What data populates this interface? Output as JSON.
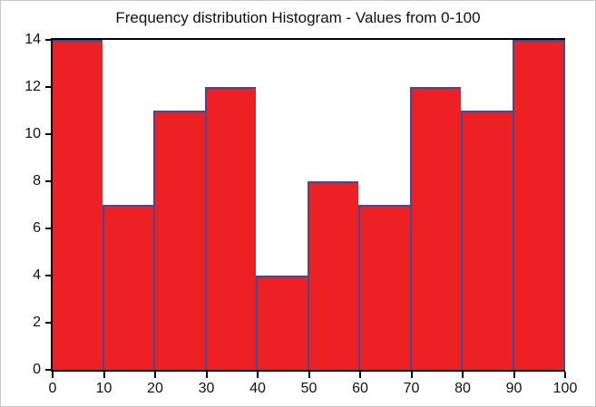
{
  "chart_data": {
    "type": "bar",
    "subtype": "histogram",
    "title": "Frequency distribution Histogram - Values from 0-100",
    "categories": [
      "0-10",
      "10-20",
      "20-30",
      "30-40",
      "40-50",
      "50-60",
      "60-70",
      "70-80",
      "80-90",
      "90-100"
    ],
    "bin_edges": [
      0,
      10,
      20,
      30,
      40,
      50,
      60,
      70,
      80,
      90,
      100
    ],
    "values": [
      14,
      7,
      11,
      12,
      4,
      8,
      7,
      12,
      11,
      14
    ],
    "xlabel": "",
    "ylabel": "",
    "x_ticks": [
      0,
      10,
      20,
      30,
      40,
      50,
      60,
      70,
      80,
      90,
      100
    ],
    "y_ticks": [
      0,
      2,
      4,
      6,
      8,
      10,
      12,
      14
    ],
    "xlim": [
      0,
      100
    ],
    "ylim": [
      0,
      14
    ],
    "grid": false,
    "legend_position": "none",
    "bar_fill_color": "#ED2024",
    "bar_border_color": "#3F4A9B",
    "axis_color": "#000000",
    "text_color": "#111111",
    "background_color": "#FFFFFF",
    "frame_border_color": "#C8C8C8"
  }
}
